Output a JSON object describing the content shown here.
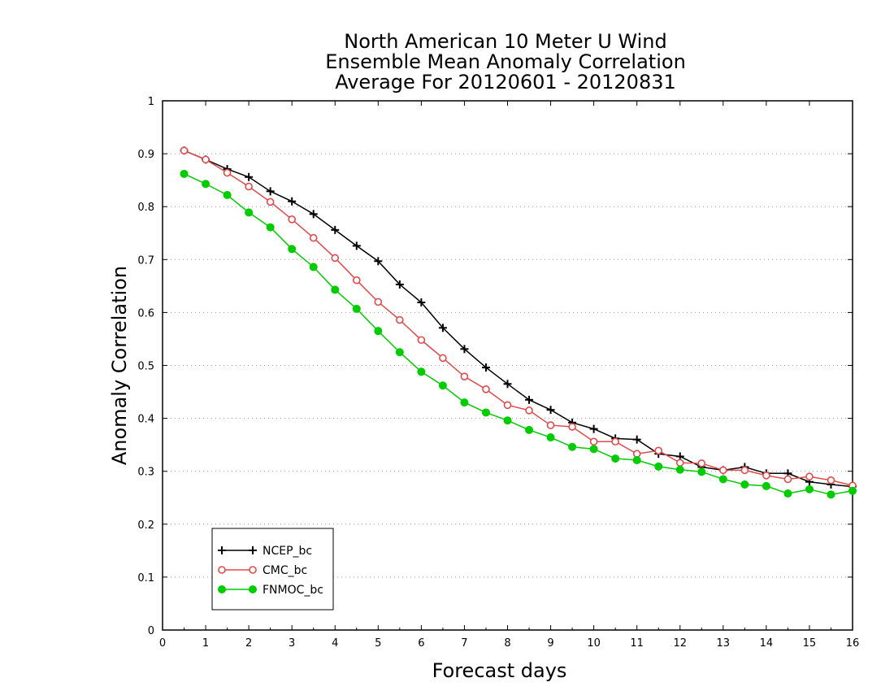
{
  "chart_data": {
    "type": "line",
    "title": [
      "North American 10 Meter U Wind",
      "Ensemble Mean Anomaly Correlation",
      "Average For 20120601 - 20120831"
    ],
    "xlabel": "Forecast days",
    "ylabel": "Anomaly Correlation",
    "xlim": [
      0,
      16
    ],
    "ylim": [
      0,
      1
    ],
    "x_ticks": [
      "0",
      "1",
      "2",
      "3",
      "4",
      "5",
      "6",
      "7",
      "8",
      "9",
      "10",
      "11",
      "12",
      "13",
      "14",
      "15",
      "16"
    ],
    "y_ticks": [
      "0",
      "0.1",
      "0.2",
      "0.3",
      "0.4",
      "0.5",
      "0.6",
      "0.7",
      "0.8",
      "0.9",
      "1"
    ],
    "grid": "horizontal dotted",
    "legend_position": "bottom-left",
    "x": [
      0.5,
      1,
      1.5,
      2,
      2.5,
      3,
      3.5,
      4,
      4.5,
      5,
      5.5,
      6,
      6.5,
      7,
      7.5,
      8,
      8.5,
      9,
      9.5,
      10,
      10.5,
      11,
      11.5,
      12,
      12.5,
      13,
      13.5,
      14,
      14.5,
      15,
      15.5,
      16
    ],
    "series": [
      {
        "name": "NCEP_bc",
        "color": "#000000",
        "marker": "plus",
        "values": [
          0.906,
          0.889,
          0.871,
          0.856,
          0.829,
          0.81,
          0.786,
          0.756,
          0.726,
          0.697,
          0.653,
          0.619,
          0.571,
          0.531,
          0.496,
          0.465,
          0.435,
          0.416,
          0.392,
          0.38,
          0.362,
          0.36,
          0.333,
          0.328,
          0.308,
          0.302,
          0.308,
          0.296,
          0.296,
          0.28,
          0.275,
          0.271
        ]
      },
      {
        "name": "CMC_bc",
        "color": "#e04a4a",
        "marker": "open-circle",
        "values": [
          0.906,
          0.889,
          0.864,
          0.838,
          0.809,
          0.776,
          0.741,
          0.703,
          0.661,
          0.62,
          0.586,
          0.548,
          0.514,
          0.479,
          0.455,
          0.425,
          0.415,
          0.387,
          0.384,
          0.356,
          0.356,
          0.333,
          0.339,
          0.316,
          0.315,
          0.302,
          0.302,
          0.292,
          0.285,
          0.29,
          0.283,
          0.273
        ]
      },
      {
        "name": "FNMOC_bc",
        "color": "#00cc00",
        "marker": "filled-circle",
        "values": [
          0.862,
          0.843,
          0.822,
          0.789,
          0.761,
          0.72,
          0.686,
          0.643,
          0.607,
          0.565,
          0.525,
          0.488,
          0.462,
          0.43,
          0.411,
          0.396,
          0.378,
          0.364,
          0.346,
          0.342,
          0.324,
          0.321,
          0.309,
          0.303,
          0.299,
          0.285,
          0.275,
          0.272,
          0.258,
          0.266,
          0.256,
          0.263
        ]
      }
    ]
  }
}
